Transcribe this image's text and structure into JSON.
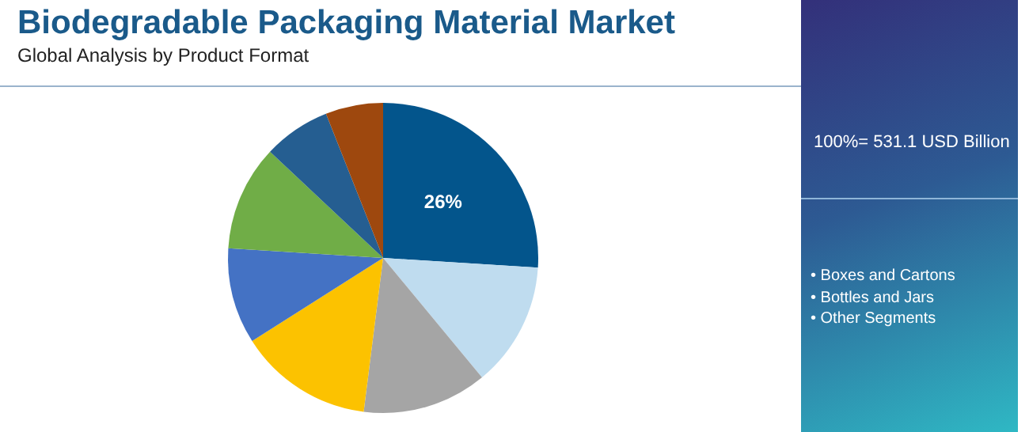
{
  "chart_data": {
    "type": "pie",
    "title": "Biodegradable Packaging Material Market",
    "subtitle": "Global Analysis by Product Format",
    "categories": [
      null,
      null,
      null,
      null,
      null,
      null,
      null,
      null
    ],
    "values": [
      26,
      13,
      13,
      14,
      10,
      11,
      7,
      6
    ],
    "colors": [
      "#03558c",
      "#bfdcef",
      "#a5a5a5",
      "#fcc200",
      "#4472c4",
      "#70ad47",
      "#255e91",
      "#9e480e"
    ],
    "value_labels": [
      "26%",
      null,
      null,
      null,
      null,
      null,
      null,
      null
    ],
    "annotations": [
      "100%= 531.1 USD Billion",
      "• Boxes and Cartons",
      "• Bottles and Jars",
      "• Other Segments"
    ]
  }
}
